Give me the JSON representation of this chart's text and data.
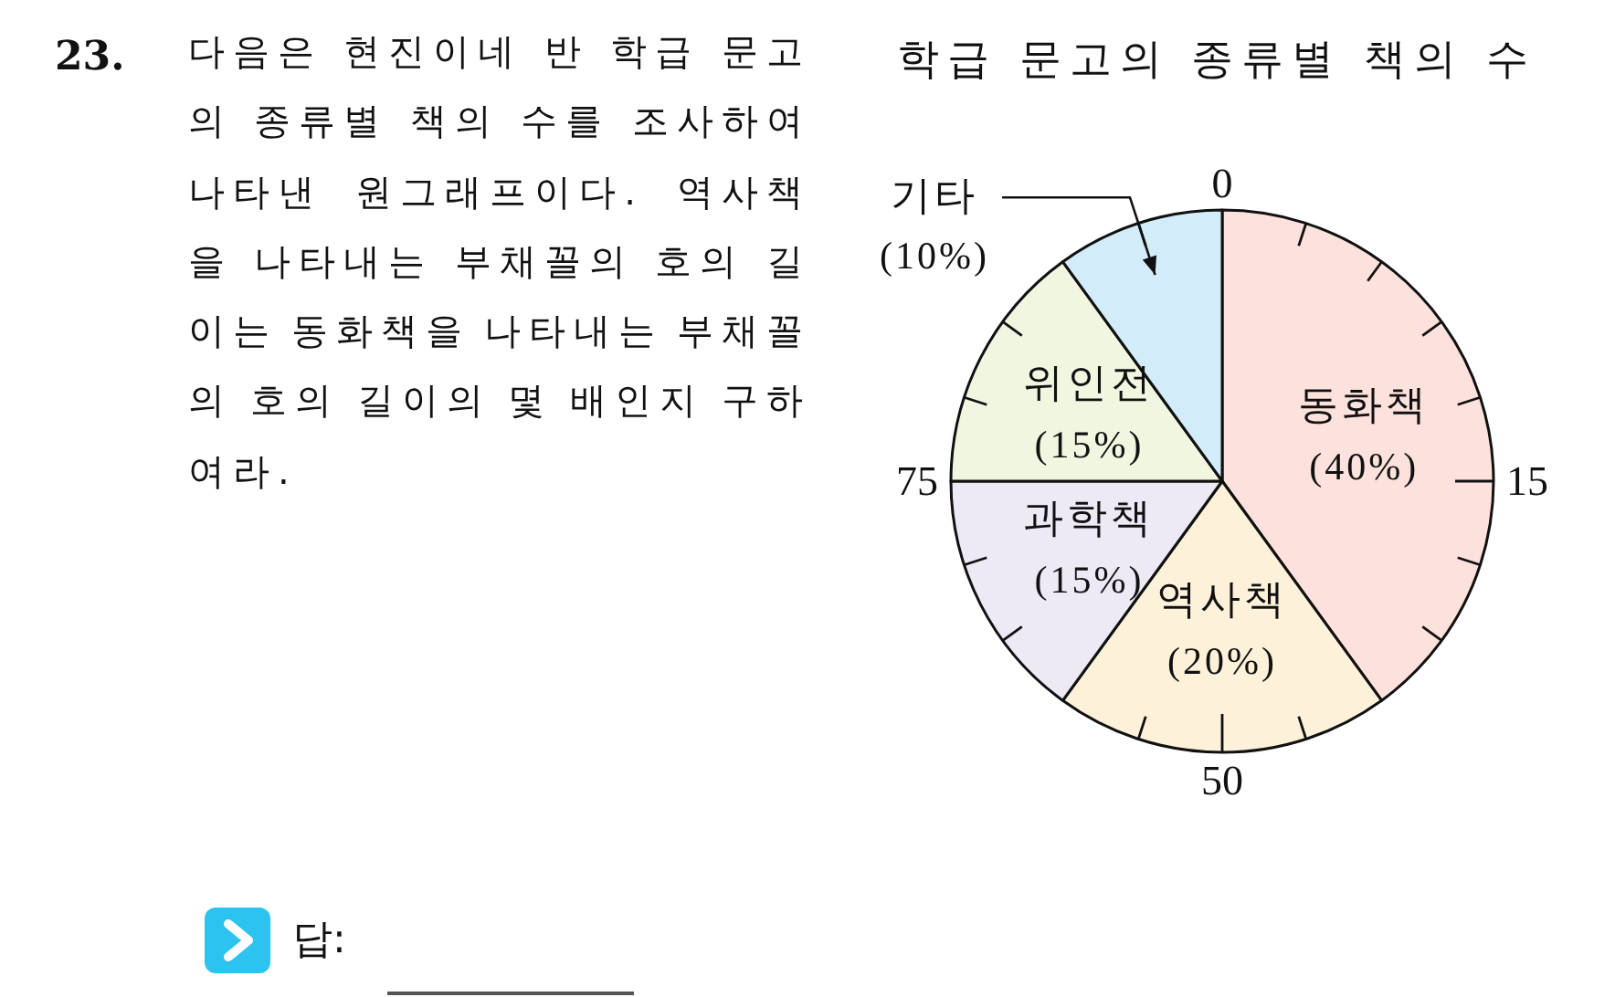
{
  "chart_data": {
    "type": "pie",
    "title": "학급 문고의 종류별 책의 수",
    "categories": [
      "동화책",
      "역사책",
      "과학책",
      "위인전",
      "기타"
    ],
    "values": [
      40,
      20,
      15,
      15,
      10
    ],
    "colors": [
      "#fde1dc",
      "#fdf1da",
      "#ede9f5",
      "#f1f6e1",
      "#d3ecf9"
    ],
    "value_labels": [
      "(40%)",
      "(20%)",
      "(15%)",
      "(15%)",
      "(10%)"
    ],
    "annotations": [
      "23.",
      "다음은 현진이네 반 학급 문고의 종류별 책의 수를 조사하여 나타낸 원그래프이다. 역사책을 나타내는 부채꼴의 호의 길이는 동화책을 나타내는 부채꼴의 호의 길이의 몇 배인지 구하여라.",
      "답:",
      "0",
      "15",
      "50",
      "75"
    ]
  }
}
